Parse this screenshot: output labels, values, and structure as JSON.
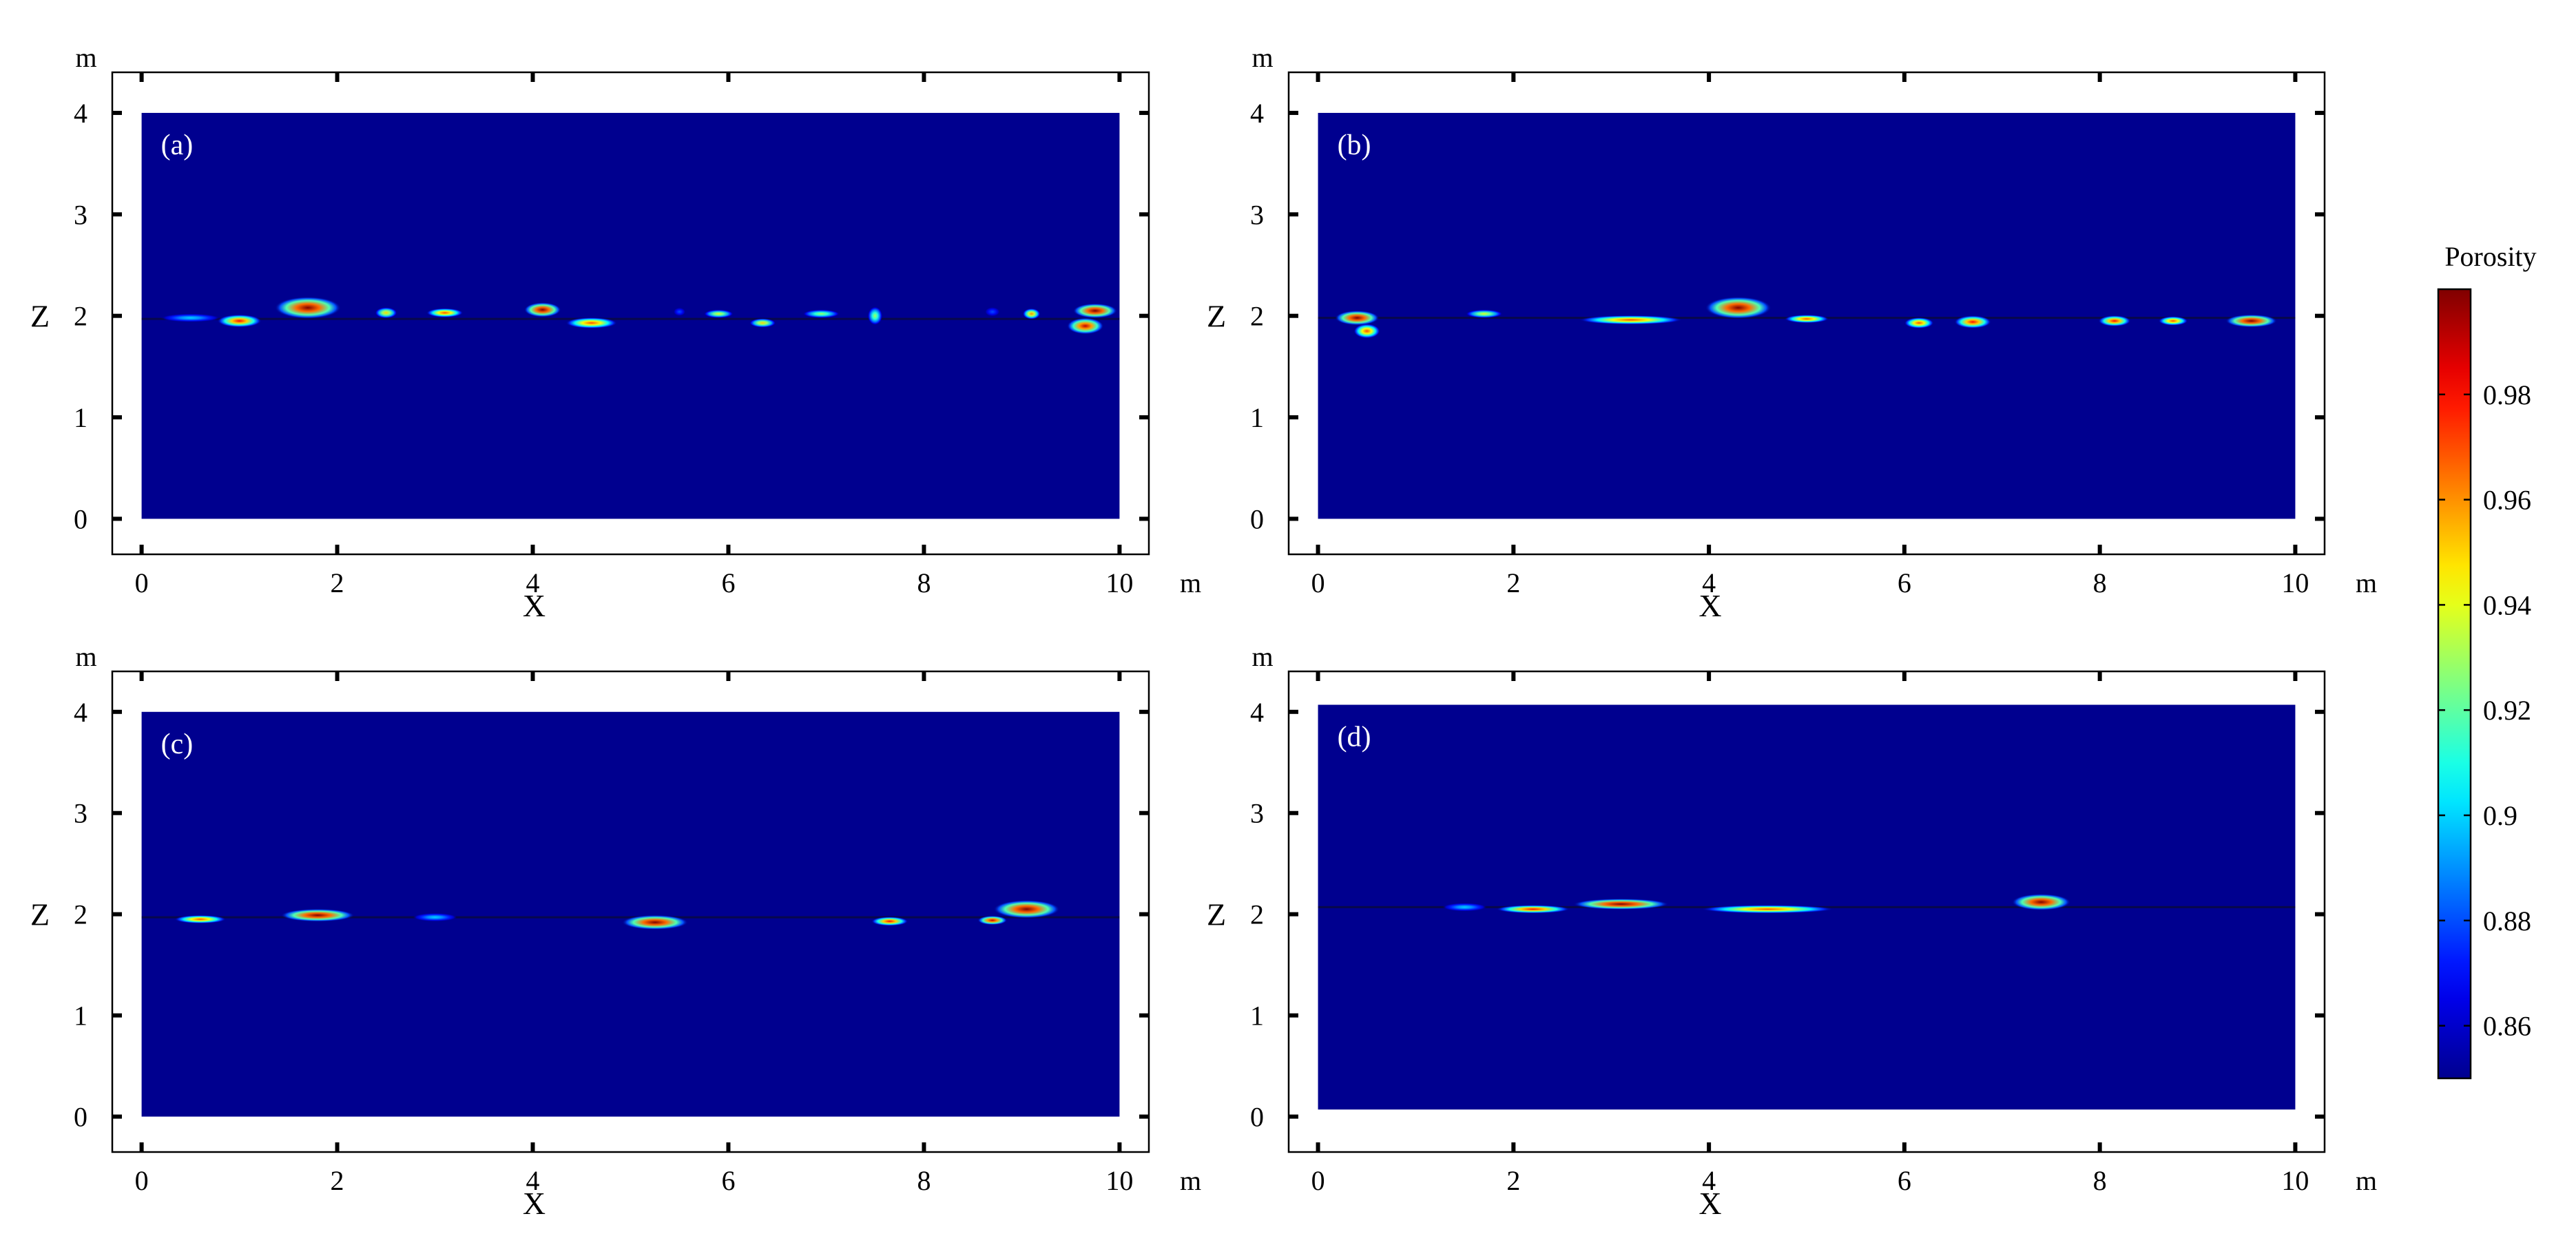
{
  "chart_data": [
    {
      "type": "heatmap",
      "panel_label": "(a)",
      "xlabel": "X",
      "ylabel": "Z",
      "x_unit": "m",
      "y_unit": "m",
      "xlim": [
        -0.3,
        10.3
      ],
      "ylim": [
        -0.35,
        4.4
      ],
      "domain": {
        "x": [
          0,
          10
        ],
        "z": [
          0,
          4
        ]
      },
      "x_ticks": [
        "0",
        "2",
        "4",
        "6",
        "8",
        "10"
      ],
      "y_ticks": [
        "0",
        "1",
        "2",
        "3",
        "4"
      ],
      "interface_z": 1.97,
      "background_porosity": 0.85,
      "features": [
        {
          "x": 0.5,
          "z": 1.98,
          "w": 0.4,
          "h": 0.02,
          "porosity": 0.9
        },
        {
          "x": 1.0,
          "z": 1.95,
          "w": 0.3,
          "h": 0.07,
          "porosity": 0.98
        },
        {
          "x": 1.7,
          "z": 2.08,
          "w": 0.45,
          "h": 0.12,
          "porosity": 1.0
        },
        {
          "x": 2.5,
          "z": 2.03,
          "w": 0.15,
          "h": 0.06,
          "porosity": 0.95
        },
        {
          "x": 3.1,
          "z": 2.03,
          "w": 0.25,
          "h": 0.05,
          "porosity": 0.97
        },
        {
          "x": 4.1,
          "z": 2.06,
          "w": 0.25,
          "h": 0.08,
          "porosity": 1.0
        },
        {
          "x": 4.6,
          "z": 1.93,
          "w": 0.35,
          "h": 0.06,
          "porosity": 0.97
        },
        {
          "x": 5.5,
          "z": 2.04,
          "w": 0.08,
          "h": 0.04,
          "porosity": 0.88
        },
        {
          "x": 5.9,
          "z": 2.02,
          "w": 0.2,
          "h": 0.04,
          "porosity": 0.94
        },
        {
          "x": 6.35,
          "z": 1.93,
          "w": 0.18,
          "h": 0.05,
          "porosity": 0.95
        },
        {
          "x": 6.95,
          "z": 2.02,
          "w": 0.25,
          "h": 0.04,
          "porosity": 0.93
        },
        {
          "x": 7.5,
          "z": 2.0,
          "w": 0.1,
          "h": 0.1,
          "porosity": 0.93
        },
        {
          "x": 8.7,
          "z": 2.04,
          "w": 0.1,
          "h": 0.05,
          "porosity": 0.88
        },
        {
          "x": 9.1,
          "z": 2.02,
          "w": 0.12,
          "h": 0.06,
          "porosity": 0.96
        },
        {
          "x": 9.75,
          "z": 2.05,
          "w": 0.3,
          "h": 0.08,
          "porosity": 1.0
        },
        {
          "x": 9.65,
          "z": 1.9,
          "w": 0.25,
          "h": 0.09,
          "porosity": 0.99
        }
      ]
    },
    {
      "type": "heatmap",
      "panel_label": "(b)",
      "xlabel": "X",
      "ylabel": "Z",
      "x_unit": "m",
      "y_unit": "m",
      "xlim": [
        -0.3,
        10.3
      ],
      "ylim": [
        -0.35,
        4.4
      ],
      "domain": {
        "x": [
          0,
          10
        ],
        "z": [
          0,
          4
        ]
      },
      "x_ticks": [
        "0",
        "2",
        "4",
        "6",
        "8",
        "10"
      ],
      "y_ticks": [
        "0",
        "1",
        "2",
        "3",
        "4"
      ],
      "interface_z": 1.98,
      "background_porosity": 0.85,
      "features": [
        {
          "x": 0.4,
          "z": 1.98,
          "w": 0.3,
          "h": 0.08,
          "porosity": 1.0
        },
        {
          "x": 0.5,
          "z": 1.85,
          "w": 0.18,
          "h": 0.08,
          "porosity": 0.97
        },
        {
          "x": 1.7,
          "z": 2.02,
          "w": 0.25,
          "h": 0.04,
          "porosity": 0.94
        },
        {
          "x": 3.2,
          "z": 1.96,
          "w": 0.7,
          "h": 0.05,
          "porosity": 0.97
        },
        {
          "x": 4.3,
          "z": 2.08,
          "w": 0.45,
          "h": 0.12,
          "porosity": 1.0
        },
        {
          "x": 5.0,
          "z": 1.97,
          "w": 0.3,
          "h": 0.04,
          "porosity": 0.97
        },
        {
          "x": 6.15,
          "z": 1.93,
          "w": 0.2,
          "h": 0.06,
          "porosity": 0.97
        },
        {
          "x": 6.7,
          "z": 1.94,
          "w": 0.25,
          "h": 0.07,
          "porosity": 0.98
        },
        {
          "x": 8.15,
          "z": 1.95,
          "w": 0.22,
          "h": 0.06,
          "porosity": 0.98
        },
        {
          "x": 8.75,
          "z": 1.95,
          "w": 0.2,
          "h": 0.05,
          "porosity": 0.97
        },
        {
          "x": 9.55,
          "z": 1.95,
          "w": 0.35,
          "h": 0.07,
          "porosity": 1.0
        }
      ]
    },
    {
      "type": "heatmap",
      "panel_label": "(c)",
      "xlabel": "X",
      "ylabel": "Z",
      "x_unit": "m",
      "y_unit": "m",
      "xlim": [
        -0.3,
        10.3
      ],
      "ylim": [
        -0.35,
        4.4
      ],
      "domain": {
        "x": [
          0,
          10
        ],
        "z": [
          0,
          4
        ]
      },
      "x_ticks": [
        "0",
        "2",
        "4",
        "6",
        "8",
        "10"
      ],
      "y_ticks": [
        "0",
        "1",
        "2",
        "3",
        "4"
      ],
      "interface_z": 1.97,
      "background_porosity": 0.85,
      "features": [
        {
          "x": 0.6,
          "z": 1.95,
          "w": 0.35,
          "h": 0.03,
          "porosity": 0.97
        },
        {
          "x": 1.8,
          "z": 1.99,
          "w": 0.5,
          "h": 0.07,
          "porosity": 1.0
        },
        {
          "x": 3.0,
          "z": 1.97,
          "w": 0.3,
          "h": 0.02,
          "porosity": 0.9
        },
        {
          "x": 5.25,
          "z": 1.92,
          "w": 0.45,
          "h": 0.08,
          "porosity": 1.0
        },
        {
          "x": 7.65,
          "z": 1.93,
          "w": 0.25,
          "h": 0.05,
          "porosity": 0.98
        },
        {
          "x": 8.7,
          "z": 1.94,
          "w": 0.2,
          "h": 0.05,
          "porosity": 0.99
        },
        {
          "x": 9.05,
          "z": 2.05,
          "w": 0.45,
          "h": 0.1,
          "porosity": 1.0
        }
      ]
    },
    {
      "type": "heatmap",
      "panel_label": "(d)",
      "xlabel": "X",
      "ylabel": "Z",
      "x_unit": "m",
      "y_unit": "m",
      "xlim": [
        -0.3,
        10.3
      ],
      "ylim": [
        -0.35,
        4.4
      ],
      "domain": {
        "x": [
          0,
          10
        ],
        "z": [
          0.07,
          4.07
        ]
      },
      "x_ticks": [
        "0",
        "2",
        "4",
        "6",
        "8",
        "10"
      ],
      "y_ticks": [
        "0",
        "1",
        "2",
        "3",
        "4"
      ],
      "interface_z": 2.07,
      "background_porosity": 0.85,
      "features": [
        {
          "x": 1.5,
          "z": 2.07,
          "w": 0.3,
          "h": 0.015,
          "porosity": 0.9
        },
        {
          "x": 2.2,
          "z": 2.05,
          "w": 0.5,
          "h": 0.04,
          "porosity": 0.98
        },
        {
          "x": 3.1,
          "z": 2.1,
          "w": 0.65,
          "h": 0.06,
          "porosity": 1.0
        },
        {
          "x": 4.6,
          "z": 2.05,
          "w": 0.9,
          "h": 0.03,
          "porosity": 0.97
        },
        {
          "x": 7.4,
          "z": 2.12,
          "w": 0.4,
          "h": 0.09,
          "porosity": 1.0
        }
      ]
    }
  ],
  "colorbar": {
    "title": "Porosity",
    "min": 0.85,
    "max": 1.0,
    "ticks": [
      "0.86",
      "0.88",
      "0.9",
      "0.92",
      "0.94",
      "0.96",
      "0.98"
    ]
  }
}
